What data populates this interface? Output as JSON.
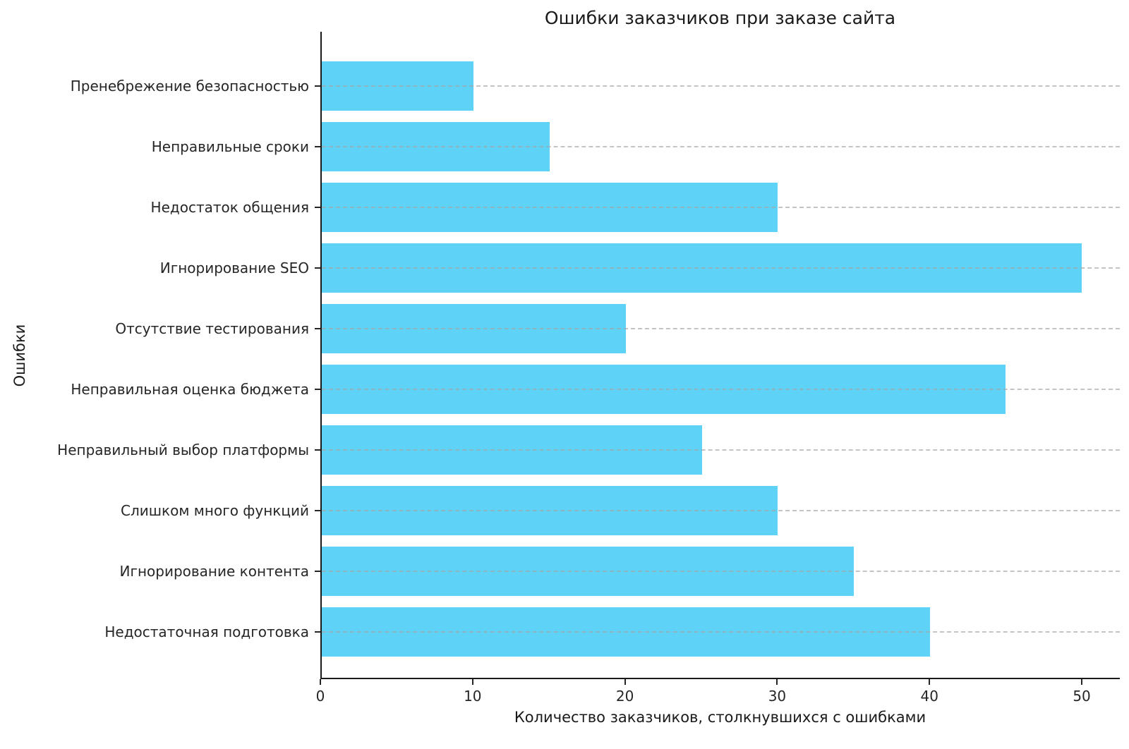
{
  "chart_data": {
    "type": "bar",
    "orientation": "horizontal",
    "title": "Ошибки заказчиков при заказе сайта",
    "xlabel": "Количество заказчиков, столкнувшихся с ошибками",
    "ylabel": "Ошибки",
    "categories": [
      "Пренебрежение безопасностью",
      "Неправильные сроки",
      "Недостаток общения",
      "Игнорирование SEO",
      "Отсутствие тестирования",
      "Неправильная оценка бюджета",
      "Неправильный выбор платформы",
      "Слишком много функций",
      "Игнорирование контента",
      "Недостаточная подготовка"
    ],
    "values": [
      10,
      15,
      30,
      50,
      20,
      45,
      25,
      30,
      35,
      40
    ],
    "x_ticks": [
      0,
      10,
      20,
      30,
      40,
      50
    ],
    "xlim": [
      0,
      52.5
    ],
    "bar_color": "#5ED3F7",
    "grid": "horizontal-dashed",
    "grid_color": "#a5a5a5",
    "axis_color": "#1a1a1a",
    "legend": "none"
  }
}
